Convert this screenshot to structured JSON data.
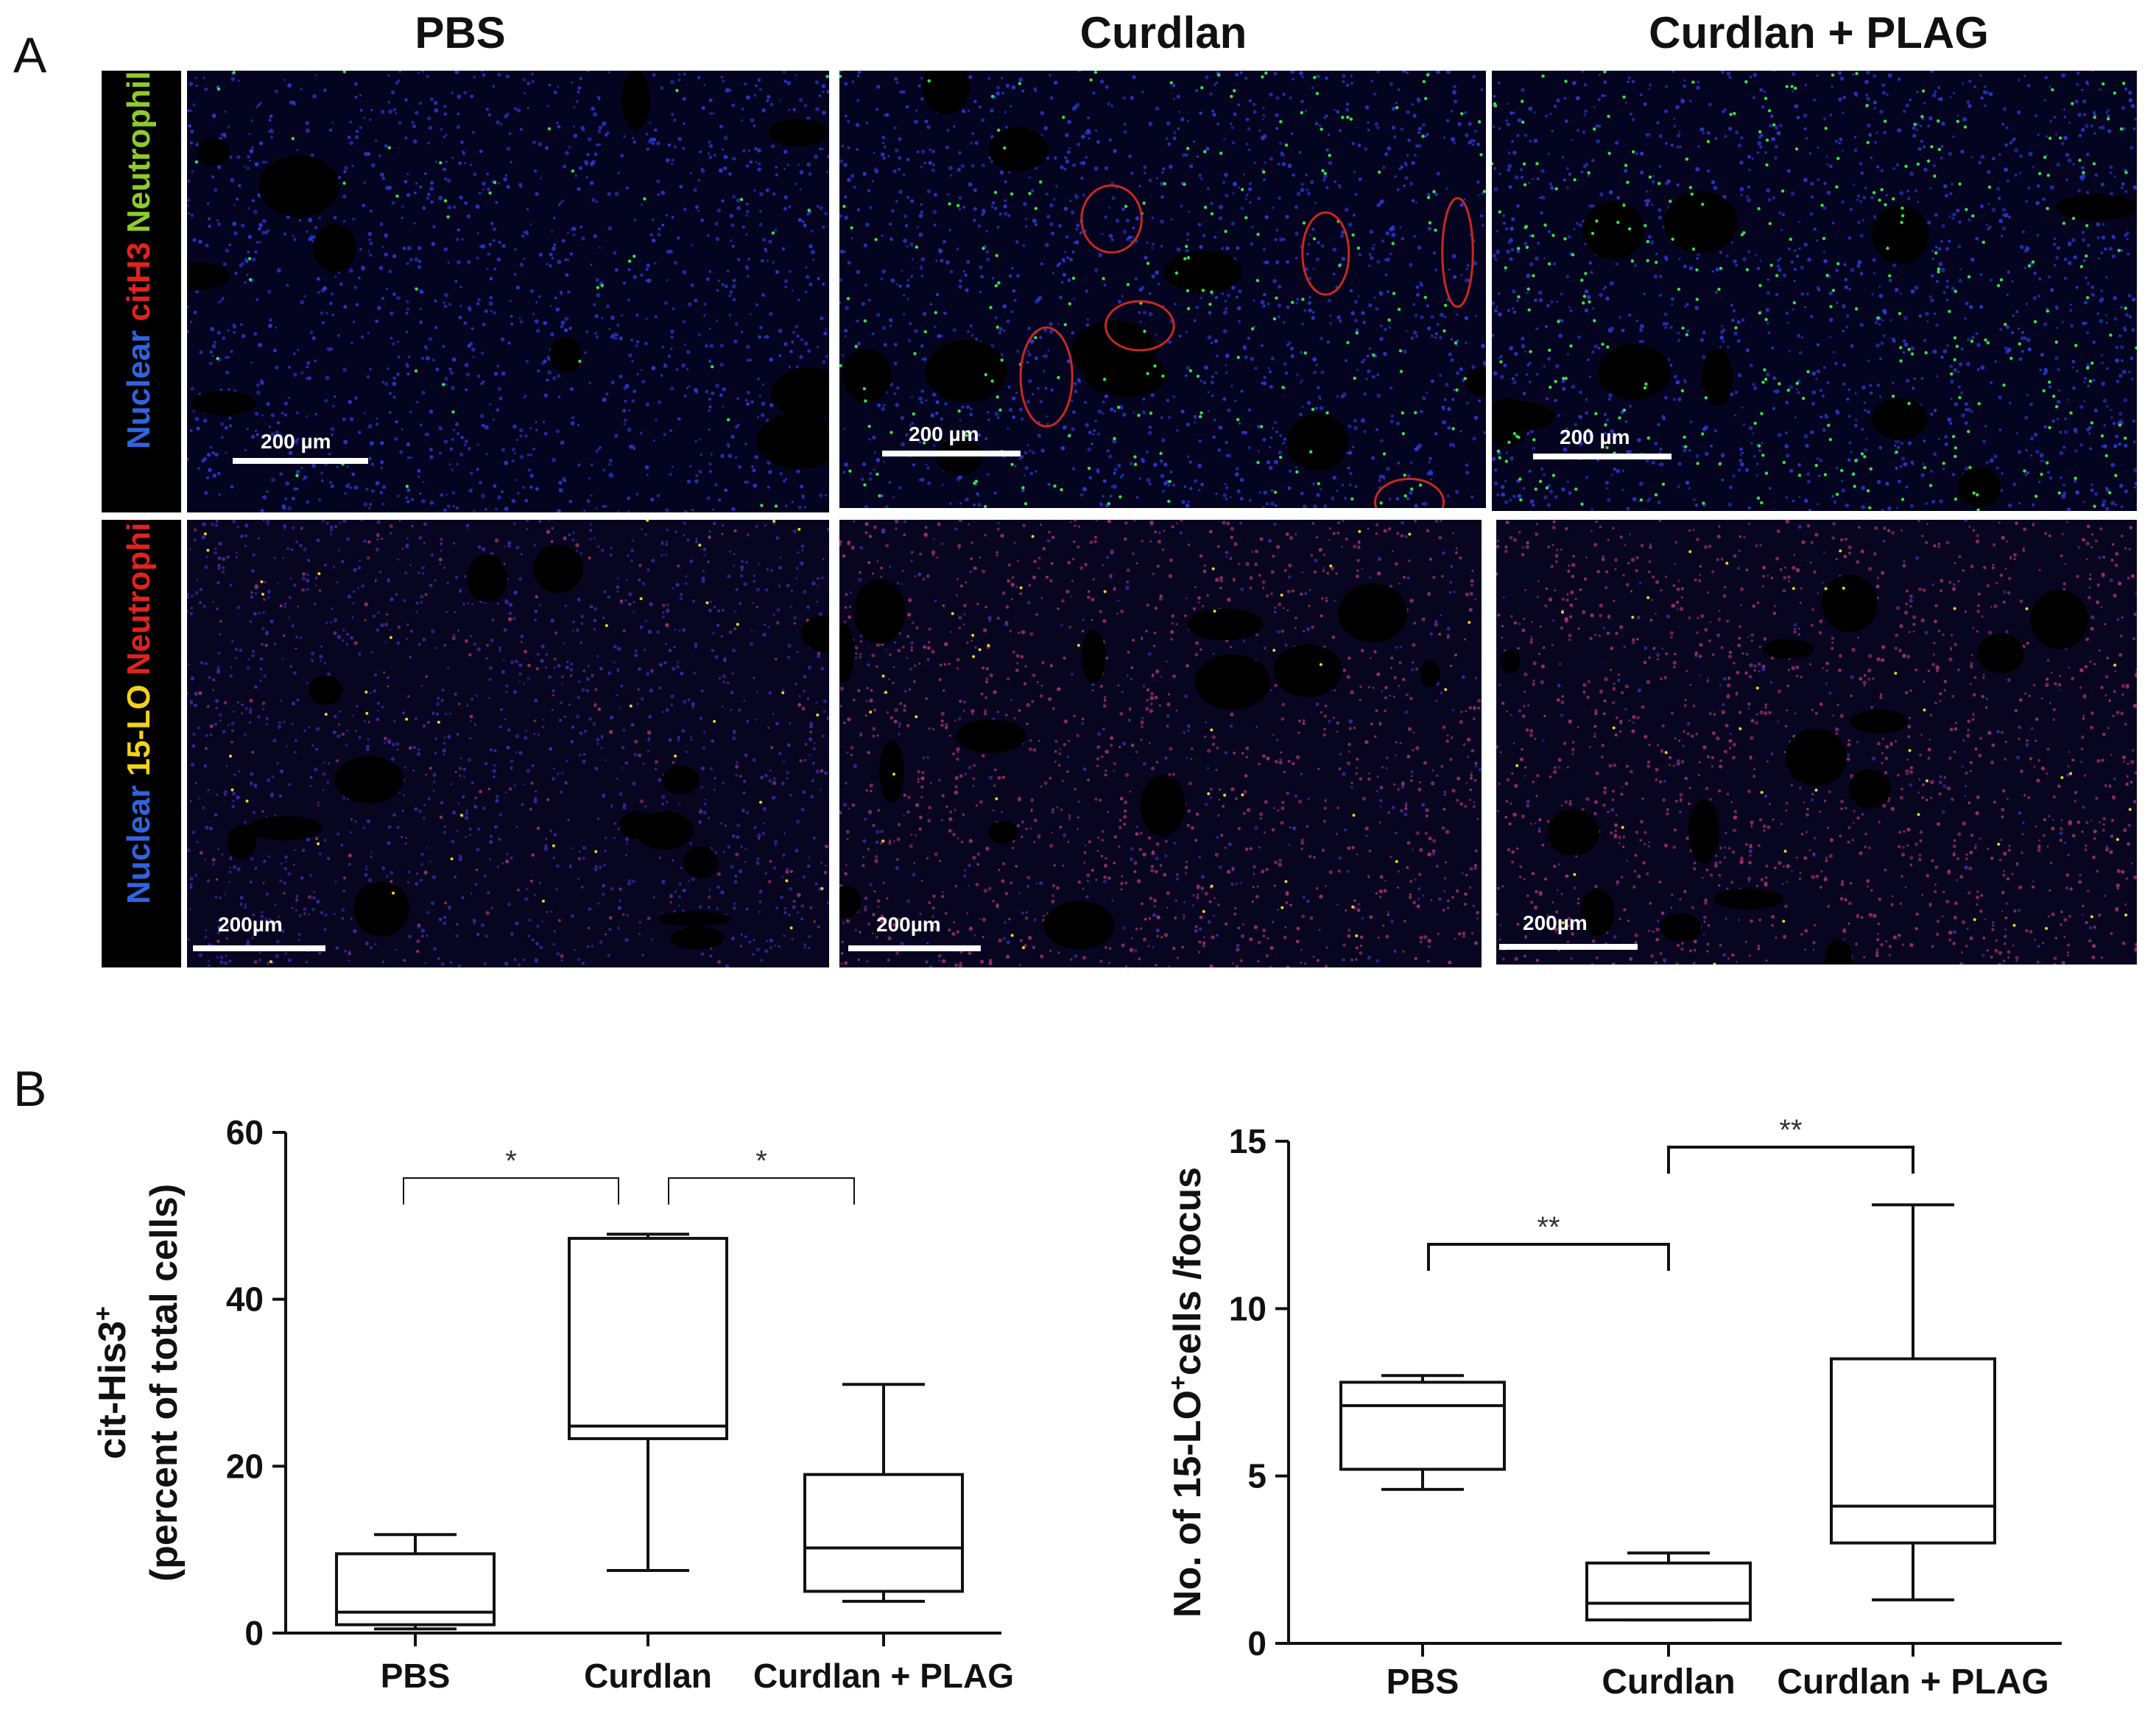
{
  "panel_a": {
    "letter": "A",
    "columns": [
      "PBS",
      "Curdlan",
      "Curdlan + PLAG"
    ],
    "row1_stain": [
      {
        "text": "Nuclear",
        "color": "#2f64e0"
      },
      {
        "text": "citH3",
        "color": "#e0231e"
      },
      {
        "text": "Neutrophil",
        "color": "#8ecb2b"
      }
    ],
    "row2_stain": [
      {
        "text": "Nuclear",
        "color": "#2f64e0"
      },
      {
        "text": "15-LO",
        "color": "#f2d21a"
      },
      {
        "text": "Neutrophil",
        "color": "#e0231e"
      }
    ],
    "row1_scale": [
      "200 µm",
      "200 µm",
      "200 µm"
    ],
    "row2_scale": [
      "200µm",
      "200µm",
      "200µm"
    ]
  },
  "panel_b": {
    "letter": "B",
    "chart_data": [
      {
        "type": "box",
        "ylabel_line1": "cit-His3",
        "ylabel_sup": "+",
        "ylabel_line2": "(percent  of total cells)",
        "ylim": [
          0,
          60
        ],
        "yticks": [
          0,
          20,
          40,
          60
        ],
        "categories": [
          "PBS",
          "Curdlan",
          "Curdlan  +  PLAG"
        ],
        "boxes": [
          {
            "min": 0.5,
            "q1": 1,
            "median": 2.5,
            "q3": 9.5,
            "max": 11.8
          },
          {
            "min": 7.5,
            "q1": 23.3,
            "median": 24.8,
            "q3": 47.3,
            "max": 47.8
          },
          {
            "min": 3.8,
            "q1": 5,
            "median": 10.2,
            "q3": 19,
            "max": 29.8
          }
        ],
        "significance": [
          {
            "from": 0,
            "to": 1,
            "label": "*"
          },
          {
            "from": 1,
            "to": 2,
            "label": "*"
          }
        ]
      },
      {
        "type": "box",
        "ylabel_pre": "No. of 15-LO",
        "ylabel_sup": "+",
        "ylabel_post": "cells /focus",
        "ylim": [
          0,
          15
        ],
        "yticks": [
          0,
          5,
          10,
          15
        ],
        "categories": [
          "PBS",
          "Curdlan",
          "Curdlan + PLAG"
        ],
        "boxes": [
          {
            "min": 4.6,
            "q1": 5.2,
            "median": 7.1,
            "q3": 7.8,
            "max": 8.0
          },
          {
            "min": 0.7,
            "q1": 0.7,
            "median": 1.2,
            "q3": 2.4,
            "max": 2.7
          },
          {
            "min": 1.3,
            "q1": 3.0,
            "median": 4.1,
            "q3": 8.5,
            "max": 13.1
          }
        ],
        "significance": [
          {
            "from": 0,
            "to": 1,
            "label": "**"
          },
          {
            "from": 1,
            "to": 2,
            "label": "**"
          }
        ]
      }
    ]
  }
}
